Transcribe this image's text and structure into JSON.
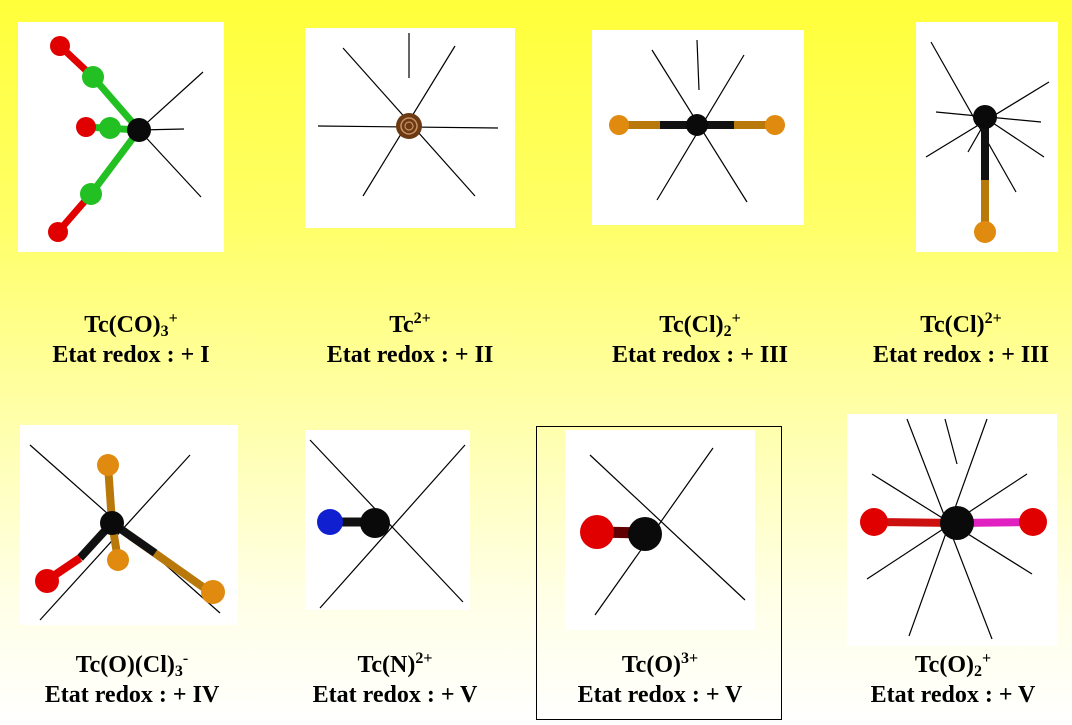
{
  "complexes": [
    {
      "formula": "Tc(CO)",
      "sub": "3",
      "sup": "+",
      "redox": "Etat redox : + I"
    },
    {
      "formula": "Tc",
      "sub": "",
      "sup": "2+",
      "redox": "Etat redox : + II"
    },
    {
      "formula": "Tc(Cl)",
      "sub": "2",
      "sup": "+",
      "redox": "Etat redox : + III"
    },
    {
      "formula": "Tc(Cl)",
      "sub": "",
      "sup": "2+",
      "redox": "Etat redox : + III"
    },
    {
      "formula": "Tc(O)(Cl)",
      "sub": "3",
      "sup": "-",
      "redox": "Etat redox : + IV"
    },
    {
      "formula": "Tc(N)",
      "sub": "",
      "sup": "2+",
      "redox": "Etat redox : + V"
    },
    {
      "formula": "Tc(O)",
      "sub": "",
      "sup": "3+",
      "redox": "Etat redox : + V"
    },
    {
      "formula": "Tc(O)",
      "sub": "2",
      "sup": "+",
      "redox": "Etat redox : + V"
    }
  ],
  "colors": {
    "metal": "#0a0a0a",
    "oxygen": "#e00000",
    "carbon": "#22c022",
    "chlorine": "#e08a10",
    "nitrogen": "#1020d0",
    "bond_pink": "#e020c0",
    "tc2_core": "#6b3a12"
  }
}
